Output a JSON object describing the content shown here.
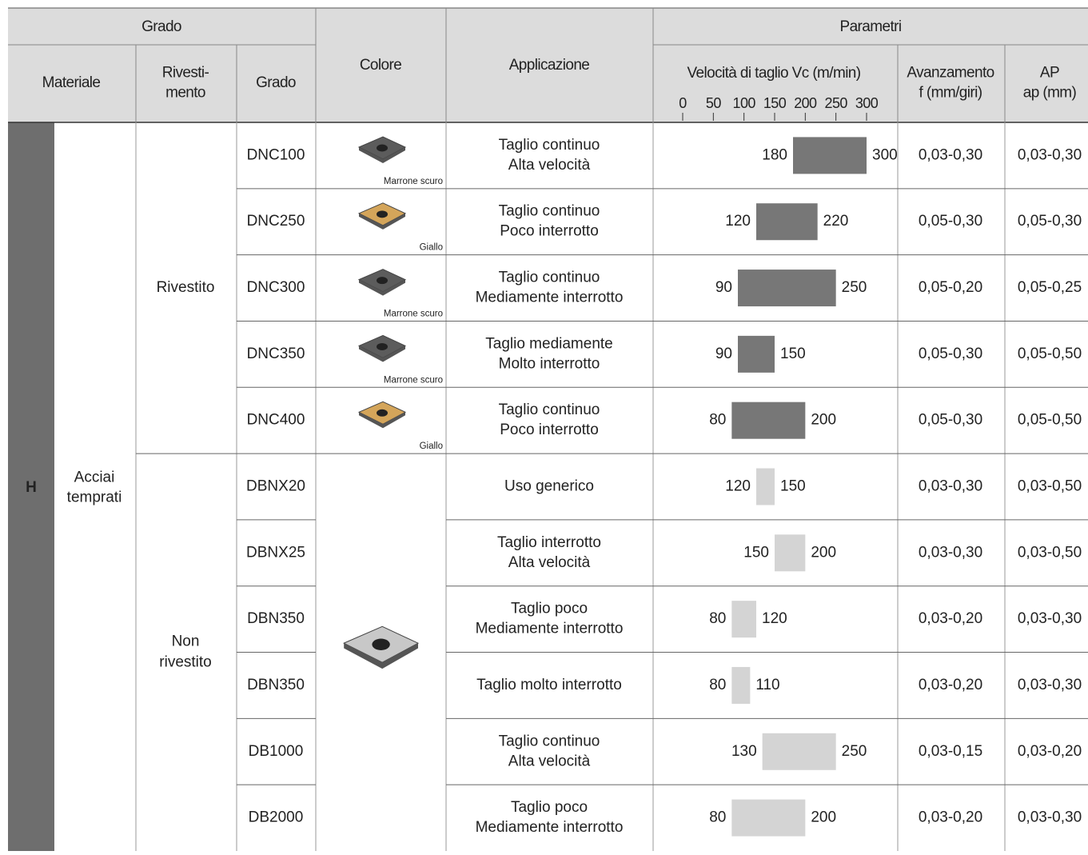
{
  "header": {
    "grado_group": "Grado",
    "parametri": "Parametri",
    "materiale": "Materiale",
    "rivestimento": [
      "Rivesti-",
      "mento"
    ],
    "grado": "Grado",
    "colore": "Colore",
    "applicazione": "Applicazione",
    "velocita": "Velocità di taglio Vc (m/min)",
    "avanzamento": [
      "Avanzamento",
      "f (mm/giri)"
    ],
    "ap": [
      "AP",
      "ap (mm)"
    ]
  },
  "scale": {
    "xlim": [
      0,
      300
    ],
    "xticks": [
      0,
      50,
      100,
      150,
      200,
      250,
      300
    ]
  },
  "material": {
    "code": "H",
    "name": [
      "Acciai",
      "temprati"
    ]
  },
  "groups": [
    {
      "coating": [
        "Rivestito"
      ],
      "bar_color": "#777777",
      "rows": [
        {
          "grade": "DNC100",
          "color_label": "Marrone scuro",
          "insert_color": "#5c5c5c",
          "application": [
            "Taglio continuo",
            "Alta velocità"
          ],
          "speed": [
            180,
            300
          ],
          "feed": "0,03-0,30",
          "ap": "0,03-0,30"
        },
        {
          "grade": "DNC250",
          "color_label": "Giallo",
          "insert_color": "#d4a55a",
          "application": [
            "Taglio continuo",
            "Poco interrotto"
          ],
          "speed": [
            120,
            220
          ],
          "feed": "0,05-0,30",
          "ap": "0,05-0,30"
        },
        {
          "grade": "DNC300",
          "color_label": "Marrone scuro",
          "insert_color": "#5c5c5c",
          "application": [
            "Taglio continuo",
            "Mediamente interrotto"
          ],
          "speed": [
            90,
            250
          ],
          "feed": "0,05-0,20",
          "ap": "0,05-0,25"
        },
        {
          "grade": "DNC350",
          "color_label": "Marrone scuro",
          "insert_color": "#5c5c5c",
          "application": [
            "Taglio mediamente",
            "Molto interrotto"
          ],
          "speed": [
            90,
            150
          ],
          "feed": "0,05-0,30",
          "ap": "0,05-0,50"
        },
        {
          "grade": "DNC400",
          "color_label": "Giallo",
          "insert_color": "#d4a55a",
          "application": [
            "Taglio continuo",
            "Poco interrotto"
          ],
          "speed": [
            80,
            200
          ],
          "feed": "0,05-0,30",
          "ap": "0,05-0,50"
        }
      ]
    },
    {
      "coating": [
        "Non",
        "rivestito"
      ],
      "bar_color": "#d4d4d4",
      "insert_color": "#c8c8c8",
      "rows": [
        {
          "grade": "DBNX20",
          "application": [
            "Uso generico"
          ],
          "speed": [
            120,
            150
          ],
          "feed": "0,03-0,30",
          "ap": "0,03-0,50"
        },
        {
          "grade": "DBNX25",
          "application": [
            "Taglio interrotto",
            "Alta velocità"
          ],
          "speed": [
            150,
            200
          ],
          "feed": "0,03-0,30",
          "ap": "0,03-0,50"
        },
        {
          "grade": "DBN350",
          "application": [
            "Taglio poco",
            "Mediamente interrotto"
          ],
          "speed": [
            80,
            120
          ],
          "feed": "0,03-0,20",
          "ap": "0,03-0,30"
        },
        {
          "grade": "DBN350",
          "application": [
            "Taglio molto interrotto"
          ],
          "speed": [
            80,
            110
          ],
          "feed": "0,03-0,20",
          "ap": "0,03-0,30"
        },
        {
          "grade": "DB1000",
          "application": [
            "Taglio continuo",
            "Alta velocità"
          ],
          "speed": [
            130,
            250
          ],
          "feed": "0,03-0,15",
          "ap": "0,03-0,20"
        },
        {
          "grade": "DB2000",
          "application": [
            "Taglio poco",
            "Mediamente interrotto"
          ],
          "speed": [
            80,
            200
          ],
          "feed": "0,03-0,20",
          "ap": "0,03-0,30"
        }
      ]
    }
  ]
}
